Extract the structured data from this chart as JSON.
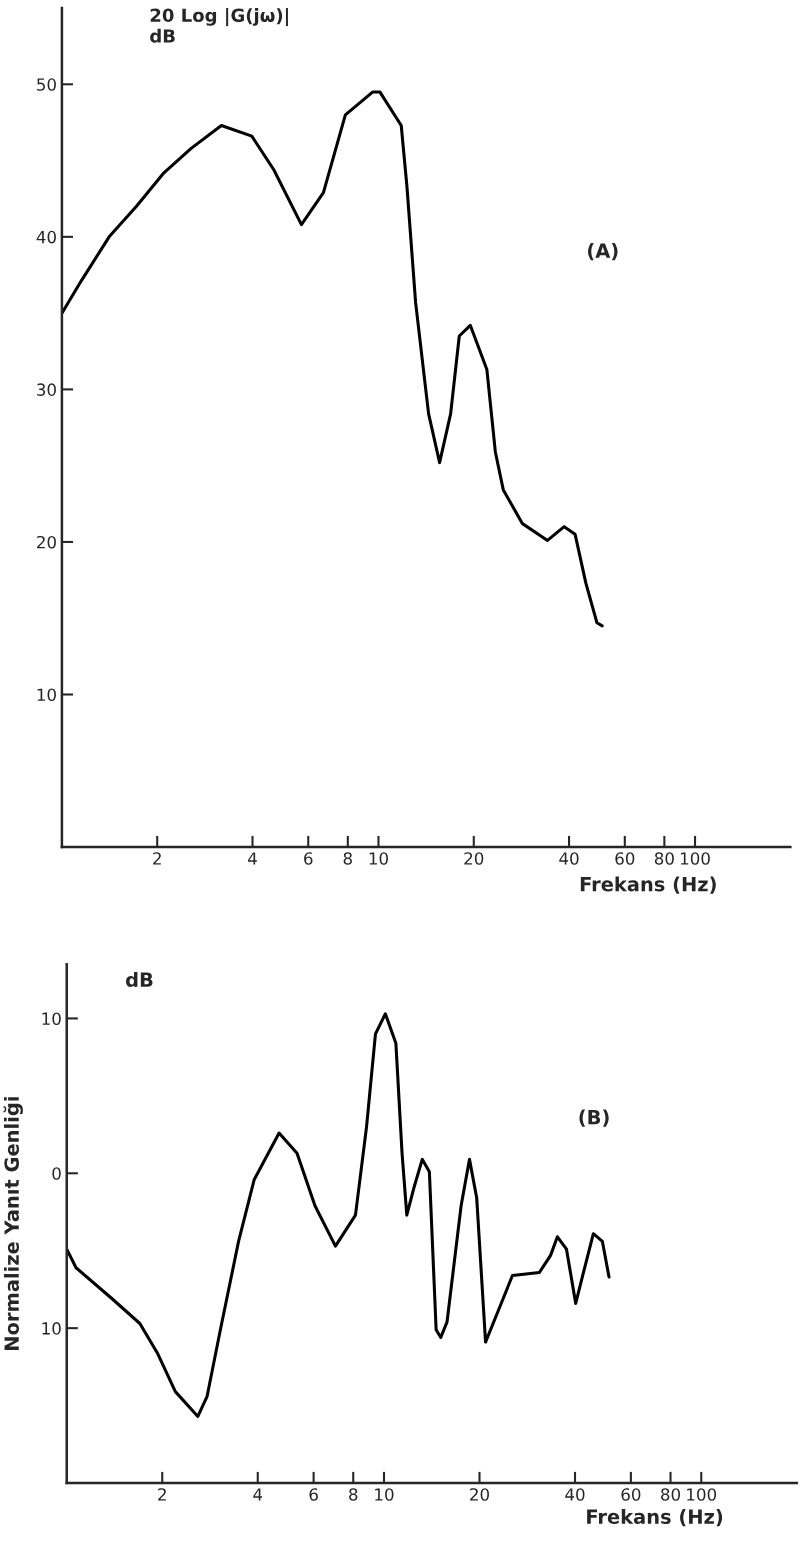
{
  "chart_data": [
    {
      "type": "line",
      "ylabel": "20 Log |G(jω)|\ndB",
      "xlabel": "Frekans (Hz)",
      "annotations": [
        "(A)"
      ],
      "log": "x",
      "grid": false,
      "legend": false,
      "marker": "none",
      "line_style": "solid",
      "xlim": [
        1,
        200
      ],
      "xticks": [
        2,
        4,
        6,
        8,
        10,
        20,
        40,
        60,
        80,
        100
      ],
      "ylim": [
        0,
        55
      ],
      "yticks": [
        10,
        20,
        30,
        40,
        50
      ],
      "series": [
        {
          "color": "#000000",
          "x": [
            1,
            1.15,
            1.41,
            1.72,
            2.1,
            2.56,
            3.19,
            3.98,
            4.67,
            5.71,
            6.7,
            7.86,
            9.6,
            10.1,
            11.8,
            12.3,
            13.1,
            14.4,
            15.6,
            16.9,
            18,
            19.5,
            22,
            23.4,
            24.8,
            28.5,
            34.2,
            38.6,
            41.8,
            45.2,
            49,
            50.9
          ],
          "values": [
            35,
            37.1,
            40,
            42,
            44.2,
            45.8,
            47.3,
            46.6,
            44.4,
            40.8,
            42.9,
            48,
            49.5,
            49.5,
            47.3,
            43.3,
            35.7,
            28.4,
            25.2,
            28.4,
            33.5,
            34.2,
            31.3,
            25.9,
            23.4,
            21.2,
            20.1,
            21,
            20.5,
            17.3,
            14.7,
            14.5
          ]
        }
      ]
    },
    {
      "type": "line",
      "ylabel": "Normalize Yanıt Genliği",
      "xlabel": "Frekans (Hz)",
      "annotations": [
        "dB",
        "(B)"
      ],
      "log": "x",
      "grid": false,
      "legend": false,
      "marker": "none",
      "line_style": "solid",
      "xlim": [
        1,
        200
      ],
      "xticks": [
        2,
        4,
        6,
        8,
        10,
        20,
        40,
        60,
        80,
        100
      ],
      "ylim": [
        -20,
        13.5
      ],
      "yticks": [
        {
          "value": -10,
          "label": "10"
        },
        0,
        10
      ],
      "series": [
        {
          "color": "#000000",
          "x": [
            1,
            1.07,
            1.39,
            1.7,
            1.93,
            2.2,
            2.59,
            2.77,
            3.05,
            3.48,
            3.9,
            4.67,
            5.32,
            6.06,
            7.03,
            8.13,
            8.81,
            9.4,
            10.1,
            10.9,
            11.4,
            11.8,
            12.4,
            13.2,
            13.9,
            14.6,
            15.1,
            15.8,
            17.5,
            18.6,
            19.6,
            20.9,
            23.1,
            25.4,
            30.9,
            33.5,
            35.2,
            37.6,
            40.2,
            42.9,
            45.7,
            48.8,
            51.2
          ],
          "values": [
            -4.9,
            -6.1,
            -8.1,
            -9.7,
            -11.6,
            -14.1,
            -15.7,
            -14.4,
            -10.1,
            -4.4,
            -0.4,
            2.6,
            1.3,
            -2.1,
            -4.7,
            -2.7,
            3,
            9,
            10.3,
            8.4,
            1.3,
            -2.7,
            -1,
            0.9,
            0.1,
            -10.1,
            -10.6,
            -9.6,
            -2.1,
            0.9,
            -1.6,
            -10.9,
            -8.7,
            -6.6,
            -6.4,
            -5.3,
            -4.1,
            -4.9,
            -8.4,
            -6.1,
            -3.9,
            -4.4,
            -6.7
          ]
        }
      ]
    }
  ]
}
